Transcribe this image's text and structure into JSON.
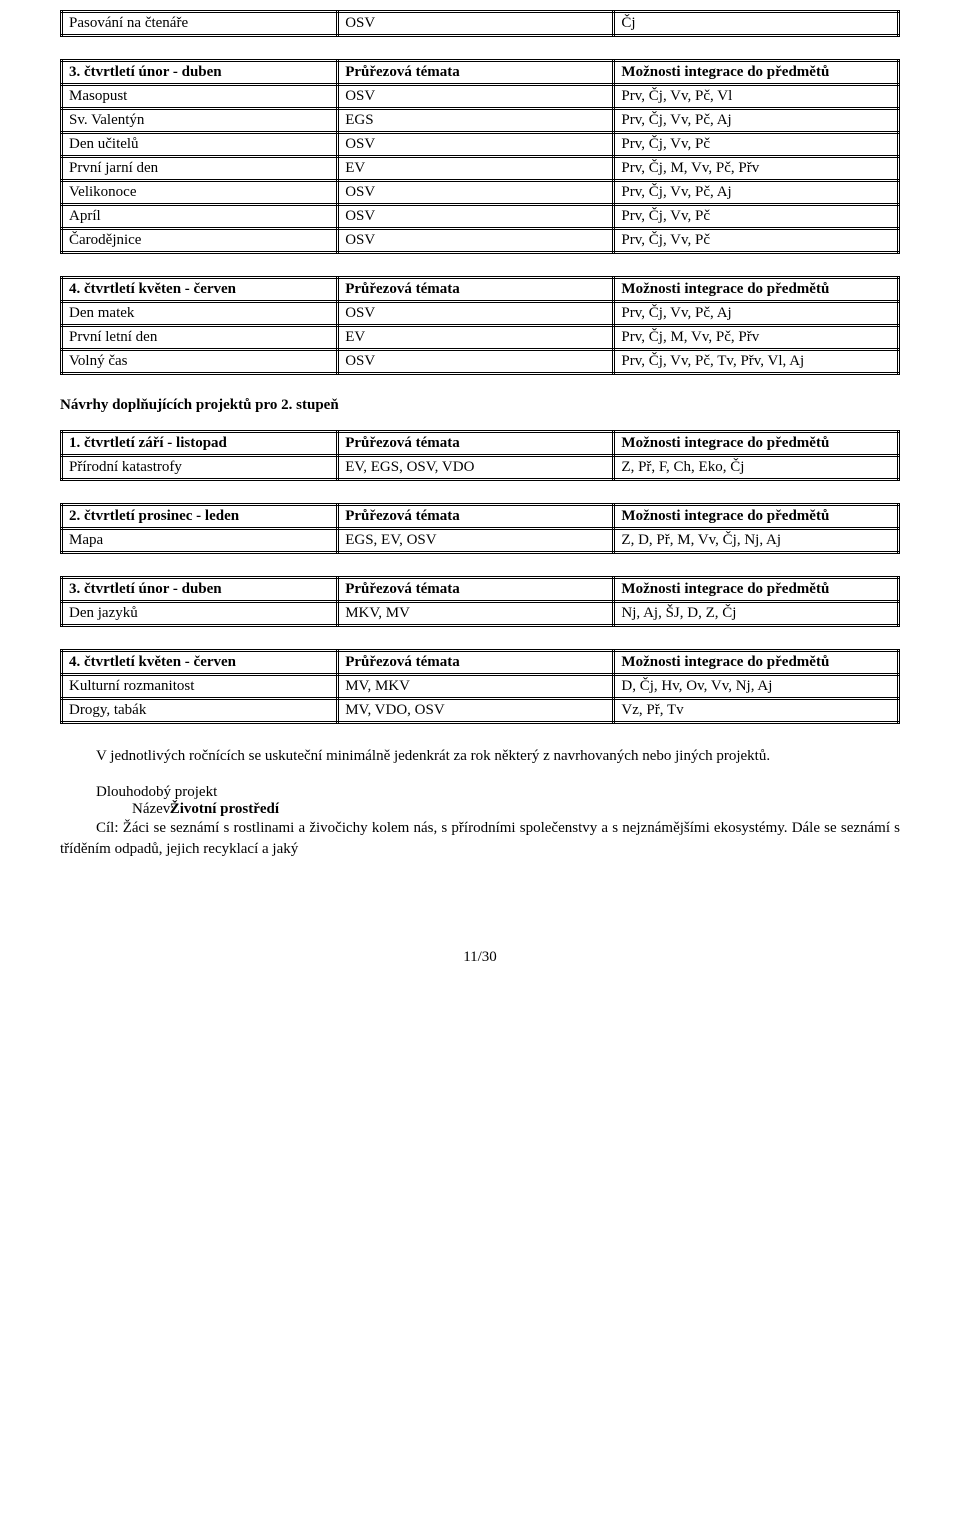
{
  "headers": {
    "topic": "Průřezová témata",
    "integration": "Možnosti integrace do předmětů",
    "q1": "1. čtvrtletí září - listopad",
    "q2": "2. čtvrtletí prosinec - leden",
    "q3": "3. čtvrtletí únor - duben",
    "q4": "4. čtvrtletí květen - červen"
  },
  "tab0": {
    "r0": {
      "a": "Pasování na čtenáře",
      "b": "OSV",
      "c": "Čj"
    }
  },
  "tab1": {
    "r0": {
      "a": "Masopust",
      "b": "OSV",
      "c": "Prv, Čj, Vv, Pč, Vl"
    },
    "r1": {
      "a": "Sv. Valentýn",
      "b": "EGS",
      "c": "Prv, Čj, Vv, Pč, Aj"
    },
    "r2": {
      "a": "Den učitelů",
      "b": "OSV",
      "c": "Prv, Čj, Vv, Pč"
    },
    "r3": {
      "a": "První jarní den",
      "b": "EV",
      "c": "Prv, Čj, M, Vv, Pč, Přv"
    },
    "r4": {
      "a": "Velikonoce",
      "b": "OSV",
      "c": "Prv, Čj, Vv, Pč, Aj"
    },
    "r5": {
      "a": "Apríl",
      "b": "OSV",
      "c": "Prv, Čj, Vv, Pč"
    },
    "r6": {
      "a": "Čarodějnice",
      "b": "OSV",
      "c": "Prv, Čj, Vv, Pč"
    }
  },
  "tab2": {
    "r0": {
      "a": "Den matek",
      "b": "OSV",
      "c": "Prv, Čj, Vv, Pč, Aj"
    },
    "r1": {
      "a": "První letní den",
      "b": "EV",
      "c": "Prv, Čj, M, Vv, Pč, Přv"
    },
    "r2": {
      "a": "Volný čas",
      "b": "OSV",
      "c": "Prv, Čj, Vv, Pč, Tv, Přv, Vl, Aj"
    }
  },
  "section2title": "Návrhy doplňujících projektů pro 2. stupeň",
  "tab3": {
    "r0": {
      "a": "Přírodní katastrofy",
      "b": "EV, EGS, OSV, VDO",
      "c": "Z, Př, F, Ch, Eko, Čj"
    }
  },
  "tab4": {
    "r0": {
      "a": "Mapa",
      "b": "EGS, EV, OSV",
      "c": "Z, D, Př, M, Vv, Čj, Nj, Aj"
    }
  },
  "tab5": {
    "r0": {
      "a": "Den jazyků",
      "b": "MKV, MV",
      "c": "Nj, Aj, ŠJ, D, Z, Čj"
    }
  },
  "tab6": {
    "r0": {
      "a": "Kulturní rozmanitost",
      "b": "MV, MKV",
      "c": "D, Čj, Hv, Ov, Vv, Nj, Aj"
    },
    "r1": {
      "a": "Drogy, tabák",
      "b": "MV, VDO, OSV",
      "c": "Vz, Př, Tv"
    }
  },
  "para1": "V jednotlivých ročnících se uskuteční minimálně jedenkrát za rok některý z navrhovaných nebo jiných projektů.",
  "project": {
    "line1": "Dlouhodobý projekt",
    "nazevLabel": "Název:",
    "nazevValue": "Životní prostředí",
    "cilLabel": "Cíl:",
    "cilText": "Žáci se seznámí s rostlinami a živočichy kolem nás, s přírodními společenstvy a s nejznámějšími ekosystémy. Dále se seznámí s tříděním odpadů, jejich recyklací a jaký"
  },
  "pagenum": "11/30"
}
